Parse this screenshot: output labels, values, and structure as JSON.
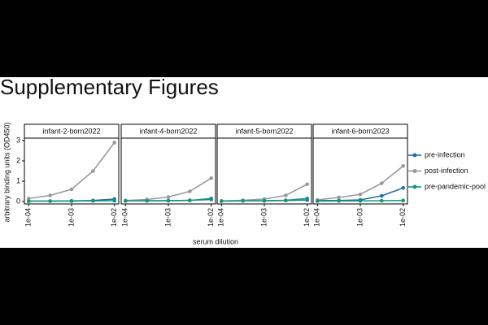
{
  "heading": "Supplementary Figures",
  "chart_data": [
    {
      "type": "line",
      "title": "infant-2-born2022",
      "xlabel": "serum dilution",
      "ylabel": "arbitrary binding units (OD450)",
      "xlog": true,
      "x": [
        0.0001,
        0.000316,
        0.001,
        0.00316,
        0.01
      ],
      "xlim": [
        7.94e-05,
        0.0126
      ],
      "xticks": [
        {
          "value": 0.0001,
          "label": "1e-04"
        },
        {
          "value": 0.001,
          "label": "1e-03"
        },
        {
          "value": 0.01,
          "label": "1e-02"
        }
      ],
      "ylim": [
        -0.12,
        3.12
      ],
      "yticks": [
        0,
        1,
        2,
        3
      ],
      "series": [
        {
          "name": "pre-infection",
          "color": "#1f6fa8",
          "values": [
            0.02,
            0.02,
            0.03,
            0.05,
            0.12
          ]
        },
        {
          "name": "post-infection",
          "color": "#9a9a9a",
          "values": [
            0.15,
            0.3,
            0.6,
            1.5,
            2.9
          ]
        },
        {
          "name": "pre-pandemic-pool",
          "color": "#13967a",
          "values": [
            0.02,
            0.02,
            0.02,
            0.03,
            0.04
          ]
        }
      ]
    },
    {
      "type": "line",
      "title": "infant-4-born2022",
      "xlog": true,
      "x": [
        0.0001,
        0.000316,
        0.001,
        0.00316,
        0.01
      ],
      "xlim": [
        7.94e-05,
        0.0126
      ],
      "xticks": [
        {
          "value": 0.0001,
          "label": "1e-04"
        },
        {
          "value": 0.001,
          "label": "1e-03"
        },
        {
          "value": 0.01,
          "label": "1e-02"
        }
      ],
      "ylim": [
        -0.12,
        3.12
      ],
      "series": [
        {
          "color": "#1f6fa8",
          "values": [
            0.03,
            0.04,
            0.04,
            0.06,
            0.1
          ]
        },
        {
          "color": "#9a9a9a",
          "values": [
            0.05,
            0.1,
            0.22,
            0.5,
            1.15
          ]
        },
        {
          "color": "#13967a",
          "values": [
            0.03,
            0.03,
            0.04,
            0.05,
            0.15
          ]
        }
      ]
    },
    {
      "type": "line",
      "title": "infant-5-born2022",
      "xlog": true,
      "x": [
        0.0001,
        0.000316,
        0.001,
        0.00316,
        0.01
      ],
      "xlim": [
        7.94e-05,
        0.0126
      ],
      "xticks": [
        {
          "value": 0.0001,
          "label": "1e-04"
        },
        {
          "value": 0.001,
          "label": "1e-03"
        },
        {
          "value": 0.01,
          "label": "1e-02"
        }
      ],
      "ylim": [
        -0.12,
        3.12
      ],
      "series": [
        {
          "color": "#1f6fa8",
          "values": [
            0.02,
            0.03,
            0.03,
            0.05,
            0.07
          ]
        },
        {
          "color": "#9a9a9a",
          "values": [
            0.03,
            0.06,
            0.12,
            0.3,
            0.85
          ]
        },
        {
          "color": "#13967a",
          "values": [
            0.02,
            0.03,
            0.04,
            0.06,
            0.15
          ]
        }
      ]
    },
    {
      "type": "line",
      "title": "infant-6-born2023",
      "xlog": true,
      "x": [
        0.0001,
        0.000316,
        0.001,
        0.00316,
        0.01
      ],
      "xlim": [
        7.94e-05,
        0.0126
      ],
      "xticks": [
        {
          "value": 0.0001,
          "label": "1e-04"
        },
        {
          "value": 0.001,
          "label": "1e-03"
        },
        {
          "value": 0.01,
          "label": "1e-02"
        }
      ],
      "ylim": [
        -0.12,
        3.12
      ],
      "series": [
        {
          "color": "#1f6fa8",
          "values": [
            0.05,
            0.05,
            0.08,
            0.28,
            0.67
          ]
        },
        {
          "color": "#9a9a9a",
          "values": [
            0.08,
            0.2,
            0.35,
            0.9,
            1.75
          ]
        },
        {
          "color": "#13967a",
          "values": [
            0.02,
            0.03,
            0.03,
            0.04,
            0.05
          ]
        }
      ]
    }
  ]
}
